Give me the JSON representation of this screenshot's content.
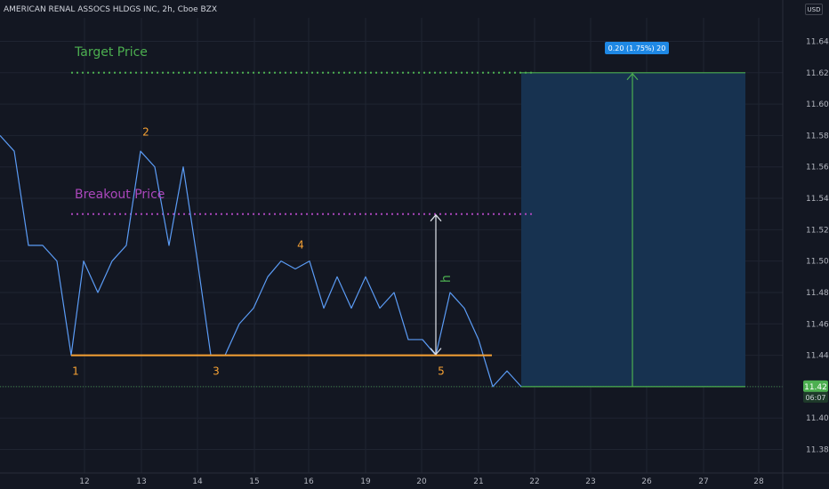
{
  "header": {
    "title": "AMERICAN RENAL ASSOCS HLDGS INC, 2h, Cboe BZX",
    "unit_button": "USD"
  },
  "colors": {
    "background": "#131722",
    "price_line": "#5b9cf6",
    "support": "#f7a234",
    "target": "#4caf50",
    "breakout": "#ab47bc",
    "projection_box": "#173250",
    "grid": "#1f2431",
    "last_price_label": "#4caf50",
    "badge": "#1e88e5"
  },
  "chart_data": {
    "type": "line",
    "title": "AMERICAN RENAL ASSOCS HLDGS INC, 2h, Cboe BZX",
    "xlabel": "",
    "ylabel": "",
    "xlim": [
      0,
      906
    ],
    "ylim": [
      11.365,
      11.655
    ],
    "x_ticks": [
      {
        "label": "12",
        "x": 95
      },
      {
        "label": "13",
        "x": 159
      },
      {
        "label": "14",
        "x": 222
      },
      {
        "label": "15",
        "x": 286
      },
      {
        "label": "16",
        "x": 347
      },
      {
        "label": "19",
        "x": 411
      },
      {
        "label": "20",
        "x": 474
      },
      {
        "label": "21",
        "x": 538
      },
      {
        "label": "22",
        "x": 601
      },
      {
        "label": "23",
        "x": 664
      },
      {
        "label": "26",
        "x": 727
      },
      {
        "label": "27",
        "x": 791
      },
      {
        "label": "28",
        "x": 853
      }
    ],
    "y_ticks": [
      11.38,
      11.4,
      11.42,
      11.44,
      11.46,
      11.48,
      11.5,
      11.52,
      11.54,
      11.56,
      11.58,
      11.6,
      11.62,
      11.64
    ],
    "y_tick_labels": [
      "11.38",
      "11.40",
      "11.42",
      "11.44",
      "11.46",
      "11.48",
      "11.50",
      "11.52",
      "11.54",
      "11.56",
      "11.58",
      "11.60",
      "11.62",
      "11.64"
    ],
    "grid": true,
    "series": [
      {
        "values": [
          [
            0,
            11.58
          ],
          [
            16,
            11.57
          ],
          [
            32,
            11.51
          ],
          [
            48,
            11.51
          ],
          [
            64,
            11.5
          ],
          [
            80,
            11.44
          ],
          [
            94,
            11.5
          ],
          [
            110,
            11.48
          ],
          [
            126,
            11.5
          ],
          [
            142,
            11.51
          ],
          [
            158,
            11.57
          ],
          [
            174,
            11.56
          ],
          [
            190,
            11.51
          ],
          [
            206,
            11.56
          ],
          [
            222,
            11.5
          ],
          [
            237,
            11.44
          ],
          [
            253,
            11.44
          ],
          [
            269,
            11.46
          ],
          [
            285,
            11.47
          ],
          [
            301,
            11.49
          ],
          [
            316,
            11.5
          ],
          [
            332,
            11.495
          ],
          [
            348,
            11.5
          ],
          [
            364,
            11.47
          ],
          [
            379,
            11.49
          ],
          [
            395,
            11.47
          ],
          [
            411,
            11.49
          ],
          [
            427,
            11.47
          ],
          [
            443,
            11.48
          ],
          [
            459,
            11.45
          ],
          [
            475,
            11.45
          ],
          [
            490,
            11.44
          ],
          [
            506,
            11.48
          ],
          [
            522,
            11.47
          ],
          [
            538,
            11.45
          ],
          [
            554,
            11.42
          ],
          [
            570,
            11.43
          ],
          [
            586,
            11.42
          ]
        ]
      }
    ],
    "support_level": 11.44,
    "target_price": 11.62,
    "breakout_price": 11.53,
    "last_price": 11.42,
    "annotations": {
      "target_label": "Target Price",
      "breakout_label": "Breakout Price",
      "measure_glyph": "h",
      "projection_label": "0.20 (1.75%) 20",
      "last_price_label": "11.42",
      "countdown_label": "06:07"
    },
    "pivots": [
      {
        "label": "1",
        "x": 85,
        "y": 11.436
      },
      {
        "label": "2",
        "x": 164,
        "y": 11.58
      },
      {
        "label": "3",
        "x": 243,
        "y": 11.435
      },
      {
        "label": "4",
        "x": 338,
        "y": 11.508
      },
      {
        "label": "5",
        "x": 496,
        "y": 11.436
      }
    ]
  }
}
